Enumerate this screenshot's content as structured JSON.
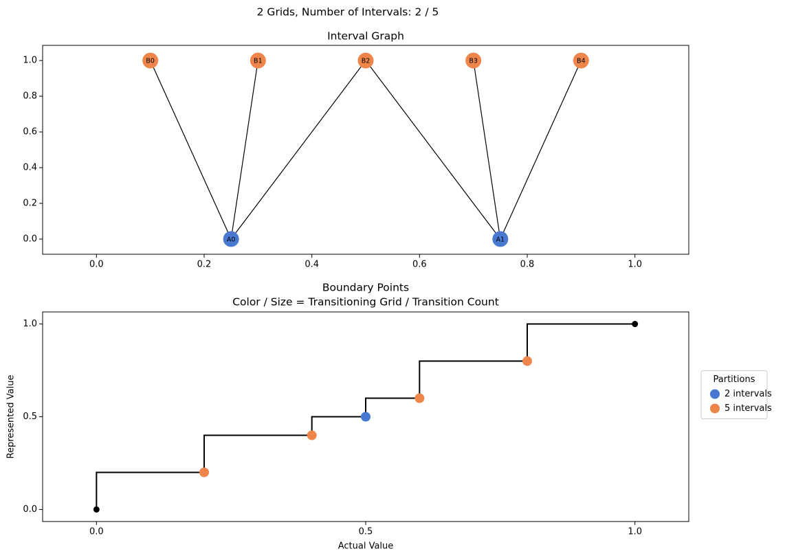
{
  "suptitle": "2 Grids, Number of Intervals: 2 / 5",
  "chart_data": [
    {
      "type": "graph",
      "title": "Interval Graph",
      "xlim": [
        -0.1,
        1.1
      ],
      "ylim": [
        -0.085,
        1.085
      ],
      "xticks": [
        {
          "value": 0,
          "label": "0.0"
        },
        0.2,
        0.4,
        0.6,
        0.8,
        {
          "value": 1,
          "label": "1.0"
        }
      ],
      "yticks": [
        {
          "value": 0,
          "label": "0.0"
        },
        0.2,
        0.4,
        0.6,
        0.8,
        {
          "value": 1,
          "label": "1.0"
        }
      ],
      "nodes": [
        {
          "label": "B0",
          "x": 0.1,
          "y": 1,
          "color": "#ee854a"
        },
        {
          "label": "B1",
          "x": 0.3,
          "y": 1,
          "color": "#ee854a"
        },
        {
          "label": "B2",
          "x": 0.5,
          "y": 1,
          "color": "#ee854a"
        },
        {
          "label": "B3",
          "x": 0.7,
          "y": 1,
          "color": "#ee854a"
        },
        {
          "label": "B4",
          "x": 0.9,
          "y": 1,
          "color": "#ee854a"
        },
        {
          "label": "A0",
          "x": 0.25,
          "y": 0,
          "color": "#4878d0"
        },
        {
          "label": "A1",
          "x": 0.75,
          "y": 0,
          "color": "#4878d0"
        }
      ],
      "edges": [
        [
          5,
          0
        ],
        [
          5,
          1
        ],
        [
          5,
          2
        ],
        [
          6,
          2
        ],
        [
          6,
          3
        ],
        [
          6,
          4
        ]
      ],
      "edge_color": "#000000"
    },
    {
      "type": "step",
      "title": "Boundary Points",
      "subtitle": "Color / Size = Transitioning Grid / Transition Count",
      "xlabel": "Actual Value",
      "ylabel": "Represented Value",
      "xlim": [
        -0.1,
        1.1
      ],
      "ylim": [
        -0.065,
        1.065
      ],
      "xticks": [
        {
          "value": 0,
          "label": "0.0"
        },
        0.5,
        {
          "value": 1,
          "label": "1.0"
        }
      ],
      "yticks": [
        {
          "value": 0,
          "label": "0.0"
        },
        0.5,
        {
          "value": 1,
          "label": "1.0"
        }
      ],
      "line": {
        "color": "#000000",
        "x": [
          0,
          0,
          0.2,
          0.2,
          0.4,
          0.4,
          0.5,
          0.5,
          0.6,
          0.6,
          0.8,
          0.8,
          1
        ],
        "y": [
          0,
          0.2,
          0.2,
          0.4,
          0.4,
          0.5,
          0.5,
          0.6,
          0.6,
          0.8,
          0.8,
          1,
          1
        ]
      },
      "endpoints": {
        "color": "#000000",
        "x": [
          0,
          1
        ],
        "y": [
          0,
          1
        ]
      },
      "legend_title": "Partitions",
      "legend": "outside right",
      "series": [
        {
          "name": "2 intervals",
          "color": "#4878d0",
          "x": [
            0.5
          ],
          "y": [
            0.5
          ]
        },
        {
          "name": "5 intervals",
          "color": "#ee854a",
          "x": [
            0.2,
            0.4,
            0.6,
            0.8
          ],
          "y": [
            0.2,
            0.4,
            0.6,
            0.8
          ]
        }
      ]
    }
  ]
}
